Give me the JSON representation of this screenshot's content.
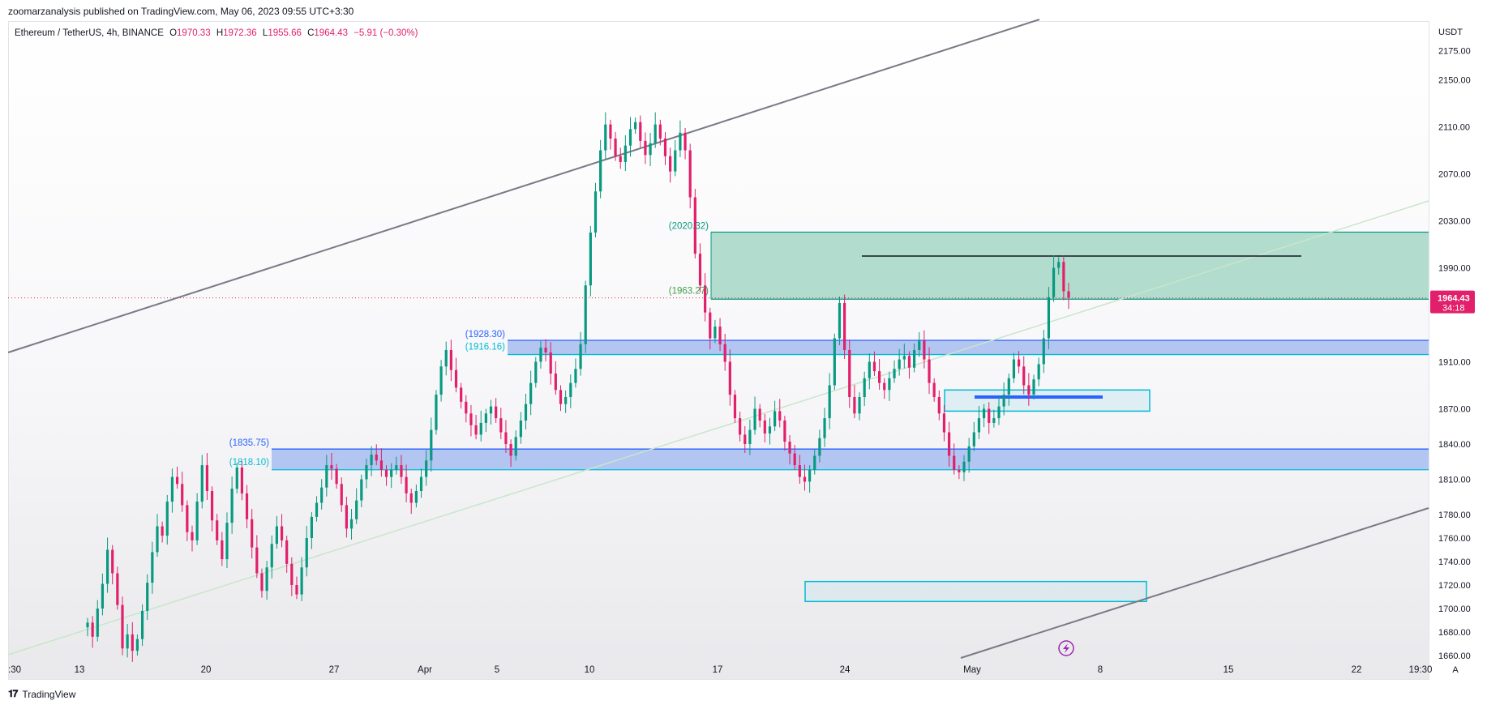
{
  "header": {
    "text": "zoomarzanalysis published on TradingView.com, May 06, 2023 09:55 UTC+3:30"
  },
  "legend": {
    "symbol": "Ethereum / TetherUS, 4h, BINANCE",
    "open_label": "O",
    "open": "1970.33",
    "high_label": "H",
    "high": "1972.36",
    "low_label": "L",
    "low": "1955.66",
    "close_label": "C",
    "close": "1964.43",
    "change": "−5.91 (−0.30%)"
  },
  "currency": "USDT",
  "footer": {
    "brand": "TradingView",
    "logo": "tradingview-logo-icon"
  },
  "colors": {
    "up": "#089981",
    "down": "#e21f6a",
    "zone_blue": "#b3c5f1",
    "zone_green": "#b2dccd",
    "price_tag": "#e21f6a",
    "channel": "#787b86"
  },
  "chart_data": {
    "type": "candlestick",
    "symbol": "ETH/USDT",
    "timeframe": "4h",
    "ylim": [
      1640,
      2200
    ],
    "y_ticks": [
      1660,
      1680,
      1700,
      1720,
      1740,
      1760,
      1780,
      1810,
      1840,
      1870,
      1910,
      1990,
      2030,
      2070,
      2110,
      2150,
      2175
    ],
    "y_tick_labels": [
      "1660.00",
      "1680.00",
      "1700.00",
      "1720.00",
      "1740.00",
      "1760.00",
      "1780.00",
      "1810.00",
      "1840.00",
      "1870.00",
      "1910.00",
      "1990.00",
      "2030.00",
      "2070.00",
      "2110.00",
      "2150.00",
      "2175.00"
    ],
    "x_tick_labels": [
      ":30",
      "13",
      "20",
      "27",
      "Apr",
      "5",
      "10",
      "17",
      "24",
      "May",
      "8",
      "15",
      "22",
      "19:30"
    ],
    "x_axis_mode": "A",
    "last_price": "1964.43",
    "countdown": "34:18",
    "candle_closes": [
      1688,
      1676,
      1700,
      1721,
      1750,
      1730,
      1703,
      1666,
      1678,
      1664,
      1674,
      1698,
      1722,
      1748,
      1770,
      1762,
      1791,
      1812,
      1806,
      1788,
      1765,
      1758,
      1791,
      1822,
      1800,
      1775,
      1758,
      1742,
      1773,
      1802,
      1820,
      1798,
      1776,
      1752,
      1730,
      1715,
      1735,
      1755,
      1770,
      1758,
      1738,
      1720,
      1712,
      1735,
      1760,
      1778,
      1790,
      1803,
      1822,
      1819,
      1806,
      1788,
      1768,
      1776,
      1792,
      1810,
      1822,
      1831,
      1826,
      1818,
      1812,
      1818,
      1822,
      1812,
      1798,
      1790,
      1800,
      1812,
      1826,
      1852,
      1882,
      1906,
      1920,
      1903,
      1888,
      1876,
      1866,
      1856,
      1848,
      1858,
      1866,
      1872,
      1862,
      1850,
      1840,
      1830,
      1846,
      1860,
      1874,
      1892,
      1910,
      1922,
      1918,
      1900,
      1886,
      1874,
      1880,
      1892,
      1904,
      1925,
      1975,
      2020,
      2055,
      2090,
      2112,
      2100,
      2085,
      2080,
      2094,
      2108,
      2114,
      2098,
      2086,
      2096,
      2112,
      2100,
      2085,
      2072,
      2090,
      2105,
      2090,
      2050,
      2002,
      1975,
      1952,
      1930,
      1940,
      1925,
      1910,
      1882,
      1862,
      1848,
      1840,
      1852,
      1870,
      1860,
      1849,
      1855,
      1868,
      1860,
      1842,
      1832,
      1822,
      1812,
      1808,
      1818,
      1830,
      1845,
      1862,
      1890,
      1930,
      1960,
      1920,
      1880,
      1866,
      1880,
      1896,
      1910,
      1902,
      1892,
      1886,
      1896,
      1904,
      1912,
      1915,
      1905,
      1920,
      1928,
      1912,
      1892,
      1880,
      1866,
      1850,
      1830,
      1818,
      1816,
      1825,
      1838,
      1850,
      1862,
      1870,
      1858,
      1862,
      1872,
      1882,
      1896,
      1912,
      1906,
      1890,
      1882,
      1895,
      1908,
      1930,
      1965,
      1990,
      1995,
      1970,
      1964.43
    ],
    "zones": [
      {
        "name": "support-zone-1",
        "top": 1835.75,
        "bottom": 1818.1,
        "top_label": "(1835.75)",
        "bottom_label": "(1818.10)"
      },
      {
        "name": "support-zone-2",
        "top": 1928.3,
        "bottom": 1916.16,
        "top_label": "(1928.30)",
        "bottom_label": "(1916.16)"
      },
      {
        "name": "resistance-zone",
        "top": 2020.32,
        "bottom": 1963.27,
        "top_label": "(2020.32)",
        "bottom_label": "(1963.27)"
      },
      {
        "name": "box-1870",
        "top": 1886,
        "bottom": 1868
      },
      {
        "name": "box-1720",
        "top": 1723,
        "bottom": 1706
      }
    ],
    "lines": [
      {
        "name": "resistance-line",
        "price": 2000
      },
      {
        "name": "blue-level",
        "price": 1880
      }
    ]
  }
}
